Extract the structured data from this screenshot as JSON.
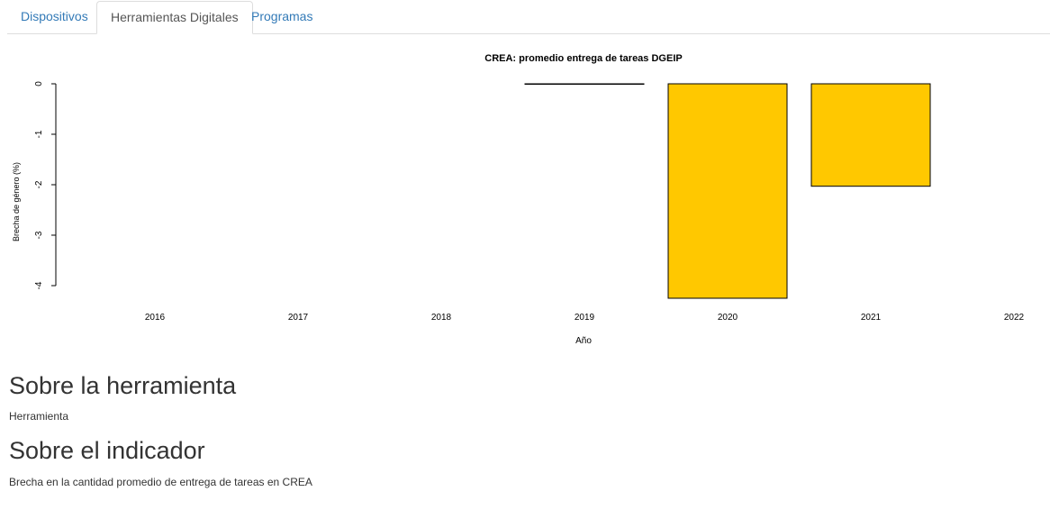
{
  "tabs": [
    {
      "label": "Dispositivos",
      "active": false
    },
    {
      "label": "Herramientas Digitales",
      "active": true
    },
    {
      "label": "Programas",
      "active": false
    }
  ],
  "sections": {
    "tool": {
      "heading": "Sobre la herramienta",
      "text": "Herramienta"
    },
    "indicator": {
      "heading": "Sobre el indicador",
      "text": "Brecha en la cantidad promedio de entrega de tareas en CREA"
    }
  },
  "chart_data": {
    "type": "bar",
    "title": "CREA: promedio entrega de tareas DGEIP",
    "xlabel": "Año",
    "ylabel": "Brecha de género (%)",
    "categories": [
      "2016",
      "2017",
      "2018",
      "2019",
      "2020",
      "2021",
      "2022"
    ],
    "values": [
      null,
      null,
      null,
      0,
      -4.25,
      -2.03,
      null
    ],
    "ylim": [
      -4.25,
      0
    ],
    "yticks": [
      "0",
      "-1",
      "-2",
      "-3",
      "-4"
    ],
    "bar_color": "#ffc800",
    "grid": false
  }
}
